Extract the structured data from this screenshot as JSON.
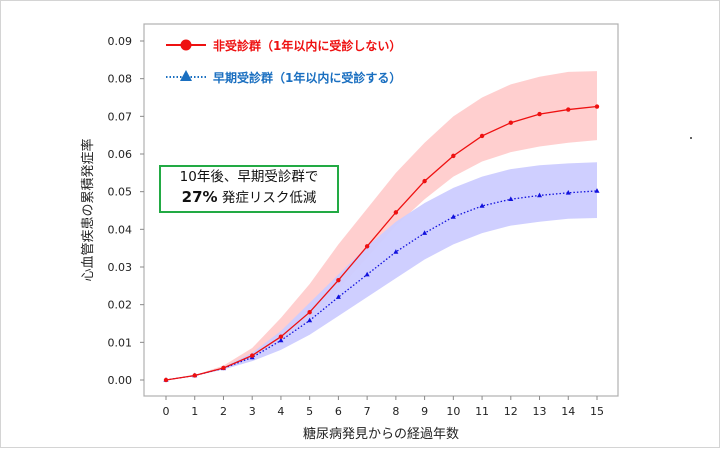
{
  "chart_data": {
    "type": "line",
    "xlabel": "糖尿病発見からの経過年数",
    "ylabel": "心血管疾患の累積発症率",
    "x": [
      0,
      1,
      2,
      3,
      4,
      5,
      6,
      7,
      8,
      9,
      10,
      11,
      12,
      13,
      14,
      15
    ],
    "xlim": [
      0,
      15
    ],
    "ylim": [
      0,
      0.09
    ],
    "yticks": [
      "0.00",
      "0.01",
      "0.02",
      "0.03",
      "0.04",
      "0.05",
      "0.06",
      "0.07",
      "0.08",
      "0.09"
    ],
    "xticks": [
      "0",
      "1",
      "2",
      "3",
      "4",
      "5",
      "6",
      "7",
      "8",
      "9",
      "10",
      "11",
      "12",
      "13",
      "14",
      "15"
    ],
    "grid": false,
    "legend_position": "top-left",
    "series": [
      {
        "name": "非受診群（1年以内に受診しない）",
        "color": "#ee1111",
        "band_color": "#ffcccc",
        "marker": "circle",
        "line_style": "solid",
        "values": [
          0,
          0.0012,
          0.0032,
          0.0065,
          0.0115,
          0.018,
          0.0265,
          0.0355,
          0.0445,
          0.0528,
          0.0595,
          0.0648,
          0.0683,
          0.0706,
          0.0718,
          0.0726
        ],
        "upper": [
          0,
          0.0013,
          0.0038,
          0.0085,
          0.0165,
          0.0255,
          0.036,
          0.0455,
          0.055,
          0.063,
          0.07,
          0.075,
          0.0785,
          0.0805,
          0.0818,
          0.082
        ],
        "lower": [
          0,
          0.0011,
          0.003,
          0.006,
          0.01,
          0.016,
          0.024,
          0.0325,
          0.041,
          0.048,
          0.054,
          0.058,
          0.0605,
          0.062,
          0.063,
          0.0637
        ]
      },
      {
        "name": "早期受診群（1年以内に受診する）",
        "color": "#1111dd",
        "legend_color": "#1a6fc0",
        "band_color": "#ccccff",
        "marker": "triangle",
        "line_style": "dotted",
        "values": [
          0,
          0.0012,
          0.0031,
          0.006,
          0.0105,
          0.0158,
          0.022,
          0.028,
          0.034,
          0.039,
          0.0433,
          0.0462,
          0.048,
          0.049,
          0.0497,
          0.0502
        ],
        "upper": [
          0,
          0.0012,
          0.0034,
          0.0072,
          0.013,
          0.0205,
          0.028,
          0.0355,
          0.042,
          0.047,
          0.051,
          0.054,
          0.056,
          0.057,
          0.0575,
          0.0578
        ],
        "lower": [
          0,
          0.0011,
          0.0028,
          0.005,
          0.008,
          0.012,
          0.017,
          0.022,
          0.027,
          0.032,
          0.036,
          0.039,
          0.041,
          0.042,
          0.0428,
          0.043
        ]
      }
    ],
    "annotation": {
      "line1": "10年後、早期受診群で",
      "bold": "27%",
      "line2_rest": " 発症リスク低減",
      "border_color": "#22aa44"
    }
  }
}
